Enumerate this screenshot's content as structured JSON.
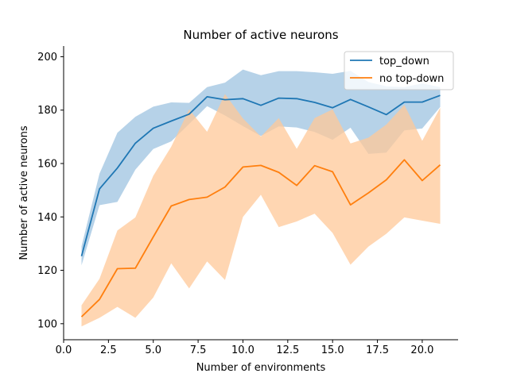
{
  "chart_data": {
    "type": "line",
    "title": "Number of active neurons",
    "xlabel": "Number of environments",
    "ylabel": "Number of active neurons",
    "xlim": [
      0.0,
      22.0
    ],
    "ylim": [
      94,
      204
    ],
    "xticks": [
      "0.0",
      "2.5",
      "5.0",
      "7.5",
      "10.0",
      "12.5",
      "15.0",
      "17.5",
      "20.0"
    ],
    "xtick_values": [
      0,
      2.5,
      5,
      7.5,
      10,
      12.5,
      15,
      17.5,
      20
    ],
    "yticks": [
      "100",
      "120",
      "140",
      "160",
      "180",
      "200"
    ],
    "ytick_values": [
      100,
      120,
      140,
      160,
      180,
      200
    ],
    "grid": false,
    "legend_position": "top-right",
    "x": [
      1,
      2,
      3,
      4,
      5,
      6,
      7,
      8,
      9,
      10,
      11,
      12,
      13,
      14,
      15,
      16,
      17,
      18,
      19,
      20,
      21
    ],
    "series": [
      {
        "name": "top_down",
        "color": "#1f77b4",
        "band_color": "#9ec3e0",
        "values": [
          125.3,
          150.5,
          158.3,
          167.6,
          173.2,
          175.9,
          178.5,
          185.0,
          183.9,
          184.3,
          181.8,
          184.5,
          184.3,
          182.9,
          180.9,
          184.0,
          181.2,
          178.3,
          183.0,
          183.0,
          185.5
        ],
        "upper": [
          129.0,
          156.2,
          171.5,
          177.5,
          181.3,
          182.9,
          182.7,
          188.6,
          190.3,
          195.2,
          193.1,
          194.6,
          194.6,
          194.2,
          193.6,
          194.7,
          190.5,
          188.9,
          188.6,
          190.0,
          188.6
        ],
        "lower": [
          121.9,
          144.4,
          145.6,
          157.7,
          165.4,
          168.3,
          174.8,
          181.5,
          178.0,
          174.0,
          170.3,
          173.9,
          173.5,
          171.8,
          168.9,
          173.4,
          163.6,
          164.1,
          172.4,
          173.1,
          181.2
        ]
      },
      {
        "name": "no top-down",
        "color": "#ff7f0e",
        "band_color": "#ffc898",
        "values": [
          102.6,
          109.1,
          120.6,
          120.8,
          132.5,
          144.1,
          146.5,
          147.4,
          151.2,
          158.7,
          159.3,
          156.7,
          151.8,
          159.2,
          156.9,
          144.5,
          149.0,
          153.9,
          161.4,
          153.6,
          159.5
        ],
        "upper": [
          106.9,
          116.8,
          134.9,
          139.8,
          155.4,
          166.3,
          180.3,
          171.9,
          186.0,
          176.9,
          170.1,
          177.0,
          165.5,
          177.0,
          180.3,
          167.5,
          169.7,
          174.6,
          182.0,
          168.5,
          180.9
        ],
        "lower": [
          99.0,
          102.2,
          106.3,
          102.2,
          109.8,
          122.6,
          113.2,
          123.3,
          116.4,
          140.0,
          148.3,
          136.2,
          138.3,
          141.2,
          134.0,
          122.1,
          128.9,
          133.7,
          139.8,
          138.6,
          137.4
        ]
      }
    ]
  }
}
